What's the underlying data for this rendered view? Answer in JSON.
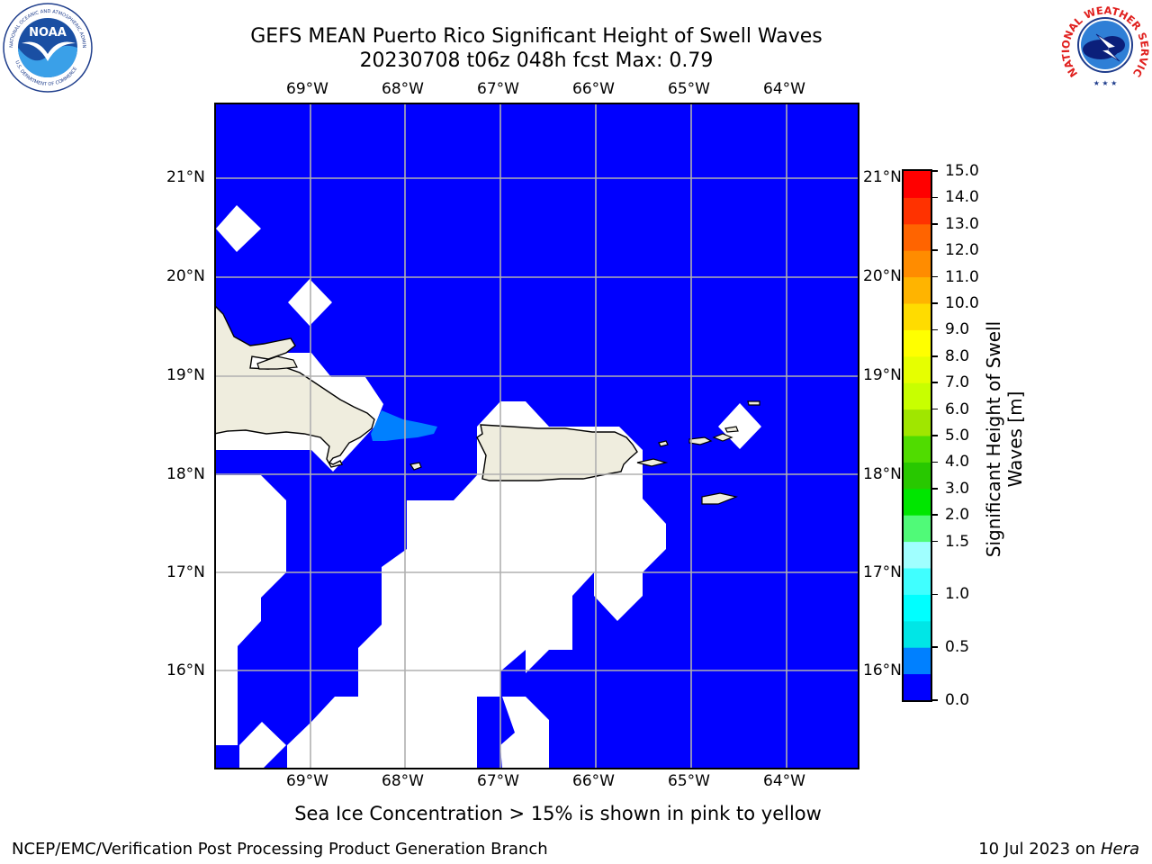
{
  "header": {
    "title_line1": "GEFS MEAN Puerto Rico Significant Height of Swell Waves",
    "title_line2": "20230708 t06z 048h fcst   Max: 0.79"
  },
  "logos": {
    "noaa_text": "NOAA",
    "noaa_ring_top": "NATIONAL OCEANIC AND ATMOSPHERIC ADMINISTRATION",
    "noaa_ring_bottom": "U.S. DEPARTMENT OF COMMERCE",
    "nws_ring_text": "NATIONAL WEATHER SERVICE"
  },
  "map": {
    "lon_labels": [
      "69°W",
      "68°W",
      "67°W",
      "66°W",
      "65°W",
      "64°W"
    ],
    "lat_labels": [
      "21°N",
      "20°N",
      "19°N",
      "18°N",
      "17°N",
      "16°N"
    ],
    "ocean_color": "#0000ff",
    "land_color": "#efedde",
    "grid_color": "#b0b0b0"
  },
  "colorbar": {
    "label": "Significant Height of Swell Waves [m]",
    "ticks": [
      "15.0",
      "14.0",
      "13.0",
      "12.0",
      "11.0",
      "10.0",
      "9.0",
      "8.0",
      "7.0",
      "6.0",
      "5.0",
      "4.0",
      "3.0",
      "2.0",
      "1.5",
      "1.0",
      "0.5",
      "0.0"
    ],
    "colors_bottom_to_top": [
      "#0000ff",
      "#0080ff",
      "#00e6e6",
      "#00ffff",
      "#40ffff",
      "#a0ffff",
      "#50fa78",
      "#00e600",
      "#28c800",
      "#50dc00",
      "#a0e600",
      "#c8ff00",
      "#e6ff00",
      "#ffff00",
      "#ffdc00",
      "#ffb400",
      "#ff8c00",
      "#ff6400",
      "#ff3200",
      "#ff0000"
    ]
  },
  "footer": {
    "note": "Sea Ice Concentration > 15% is shown in pink to yellow",
    "credit": "NCEP/EMC/Verification Post Processing Product Generation Branch",
    "date": "10 Jul 2023 on ",
    "machine": "Hera"
  }
}
